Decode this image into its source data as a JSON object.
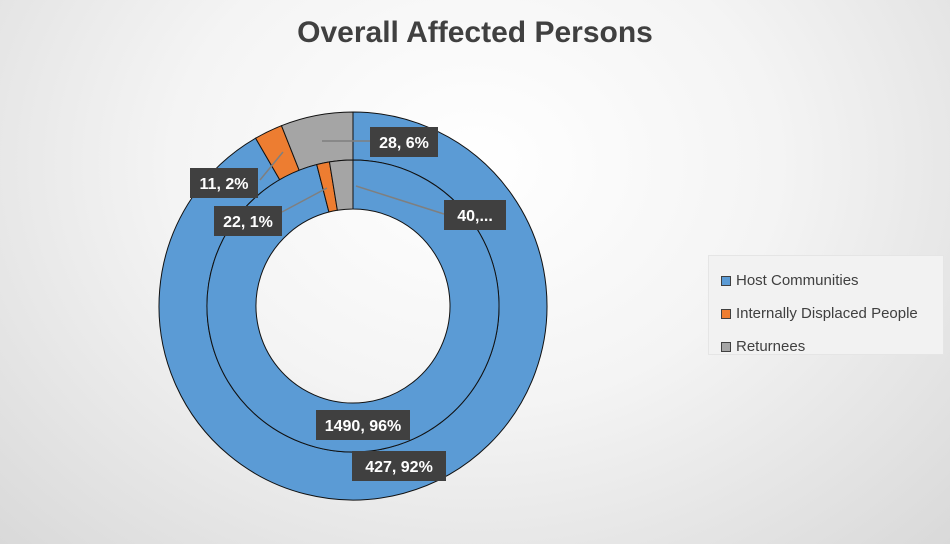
{
  "chart_data": {
    "type": "doughnut",
    "title": "Overall Affected Persons",
    "categories": [
      "Host Communities",
      "Internally Displaced People",
      "Returnees"
    ],
    "colors": [
      "#5b9bd5",
      "#ed7d31",
      "#a5a5a5"
    ],
    "series": [
      {
        "values": [
          427,
          11,
          28
        ],
        "data_labels": [
          "427, 92%",
          "11, 2%",
          "28, 6%"
        ]
      },
      {
        "values": [
          1490,
          22,
          40
        ],
        "data_labels": [
          "1490, 96%",
          "22, 1%",
          "40,..."
        ]
      }
    ],
    "legend_position": "right"
  }
}
